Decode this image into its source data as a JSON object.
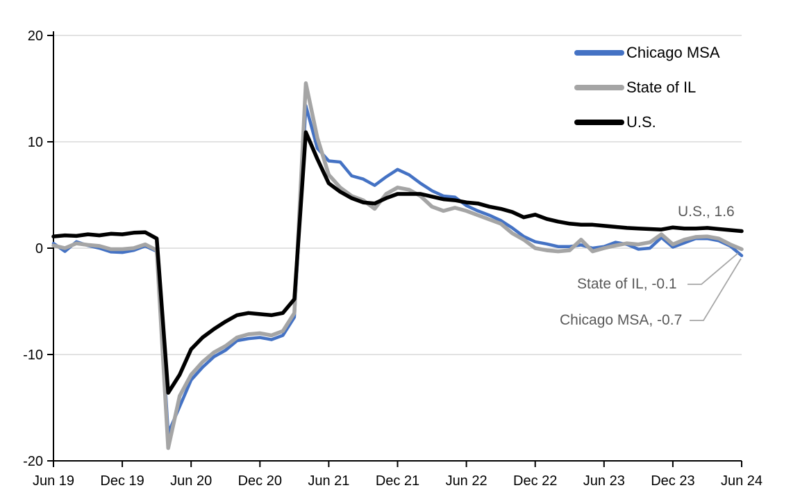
{
  "chart_data": {
    "type": "line",
    "title": "",
    "frequency": "monthly",
    "x_range": "Jun 2019 - Jun 2024",
    "grid": "horizontal",
    "legend_position": "top-right-inside",
    "ylim": [
      -20,
      20
    ],
    "y_ticks": [
      20,
      10,
      0,
      -10,
      -20
    ],
    "x_tick_labels": [
      "Jun 19",
      "Dec 19",
      "Jun 20",
      "Dec 20",
      "Jun 21",
      "Dec 21",
      "Jun 22",
      "Dec 22",
      "Jun 23",
      "Dec 23",
      "Jun 24"
    ],
    "months": [
      "Jun 19",
      "Jul 19",
      "Aug 19",
      "Sep 19",
      "Oct 19",
      "Nov 19",
      "Dec 19",
      "Jan 20",
      "Feb 20",
      "Mar 20",
      "Apr 20",
      "May 20",
      "Jun 20",
      "Jul 20",
      "Aug 20",
      "Sep 20",
      "Oct 20",
      "Nov 20",
      "Dec 20",
      "Jan 21",
      "Feb 21",
      "Mar 21",
      "Apr 21",
      "May 21",
      "Jun 21",
      "Jul 21",
      "Aug 21",
      "Sep 21",
      "Oct 21",
      "Nov 21",
      "Dec 21",
      "Jan 22",
      "Feb 22",
      "Mar 22",
      "Apr 22",
      "May 22",
      "Jun 22",
      "Jul 22",
      "Aug 22",
      "Sep 22",
      "Oct 22",
      "Nov 22",
      "Dec 22",
      "Jan 23",
      "Feb 23",
      "Mar 23",
      "Apr 23",
      "May 23",
      "Jun 23",
      "Jul 23",
      "Aug 23",
      "Sep 23",
      "Oct 23",
      "Nov 23",
      "Dec 23",
      "Jan 24",
      "Feb 24",
      "Mar 24",
      "Apr 24",
      "May 24",
      "Jun 24"
    ],
    "series": [
      {
        "name": "Chicago MSA",
        "color": "#4472C4",
        "line_width": 4.5,
        "values": [
          0.45,
          -0.3,
          0.6,
          0.25,
          0.0,
          -0.35,
          -0.4,
          -0.2,
          0.2,
          -0.3,
          -17.4,
          -14.9,
          -12.4,
          -11.2,
          -10.2,
          -9.6,
          -8.7,
          -8.5,
          -8.4,
          -8.6,
          -8.2,
          -6.5,
          13.4,
          9.4,
          8.2,
          8.1,
          6.8,
          6.5,
          5.9,
          6.7,
          7.4,
          6.9,
          6.1,
          5.4,
          4.9,
          4.8,
          4.0,
          3.5,
          3.1,
          2.6,
          1.9,
          1.1,
          0.6,
          0.4,
          0.15,
          0.15,
          0.3,
          0.0,
          0.15,
          0.55,
          0.35,
          -0.1,
          0.0,
          1.0,
          0.1,
          0.5,
          0.9,
          0.9,
          0.7,
          0.2,
          -0.7
        ]
      },
      {
        "name": "State of IL",
        "color": "#A5A5A5",
        "line_width": 5.5,
        "values": [
          0.25,
          0.0,
          0.45,
          0.3,
          0.2,
          -0.1,
          -0.1,
          0.0,
          0.35,
          -0.2,
          -18.8,
          -13.9,
          -11.9,
          -10.7,
          -9.8,
          -9.2,
          -8.4,
          -8.1,
          -8.0,
          -8.2,
          -7.8,
          -6.1,
          15.5,
          10.4,
          6.9,
          5.7,
          4.9,
          4.5,
          3.7,
          5.1,
          5.7,
          5.5,
          4.9,
          3.9,
          3.5,
          3.8,
          3.5,
          3.1,
          2.7,
          2.3,
          1.4,
          0.8,
          0.0,
          -0.2,
          -0.3,
          -0.2,
          0.8,
          -0.3,
          0.0,
          0.25,
          0.45,
          0.35,
          0.55,
          1.3,
          0.35,
          0.8,
          1.05,
          1.1,
          0.9,
          0.35,
          -0.1
        ]
      },
      {
        "name": "U.S.",
        "color": "#000000",
        "line_width": 5.5,
        "values": [
          1.1,
          1.2,
          1.15,
          1.3,
          1.2,
          1.35,
          1.3,
          1.45,
          1.5,
          0.9,
          -13.6,
          -11.9,
          -9.5,
          -8.4,
          -7.6,
          -6.9,
          -6.3,
          -6.1,
          -6.2,
          -6.3,
          -6.1,
          -4.8,
          10.9,
          8.4,
          6.1,
          5.3,
          4.7,
          4.3,
          4.2,
          4.7,
          5.1,
          5.1,
          5.1,
          4.85,
          4.6,
          4.5,
          4.3,
          4.2,
          3.9,
          3.7,
          3.4,
          2.9,
          3.15,
          2.75,
          2.5,
          2.3,
          2.2,
          2.2,
          2.1,
          2.0,
          1.9,
          1.85,
          1.8,
          1.75,
          1.95,
          1.85,
          1.85,
          1.9,
          1.8,
          1.7,
          1.6
        ]
      }
    ],
    "annotations": [
      {
        "text": "U.S., 1.6",
        "series": "U.S.",
        "value": 1.6
      },
      {
        "text": "State of IL, -0.1",
        "series": "State of IL",
        "value": -0.1
      },
      {
        "text": "Chicago MSA, -0.7",
        "series": "Chicago MSA",
        "value": -0.7
      }
    ],
    "colors": {
      "gridline": "#D9D9D9",
      "axis": "#000000",
      "annotation_text": "#595959",
      "leader_line": "#A6A6A6"
    }
  }
}
